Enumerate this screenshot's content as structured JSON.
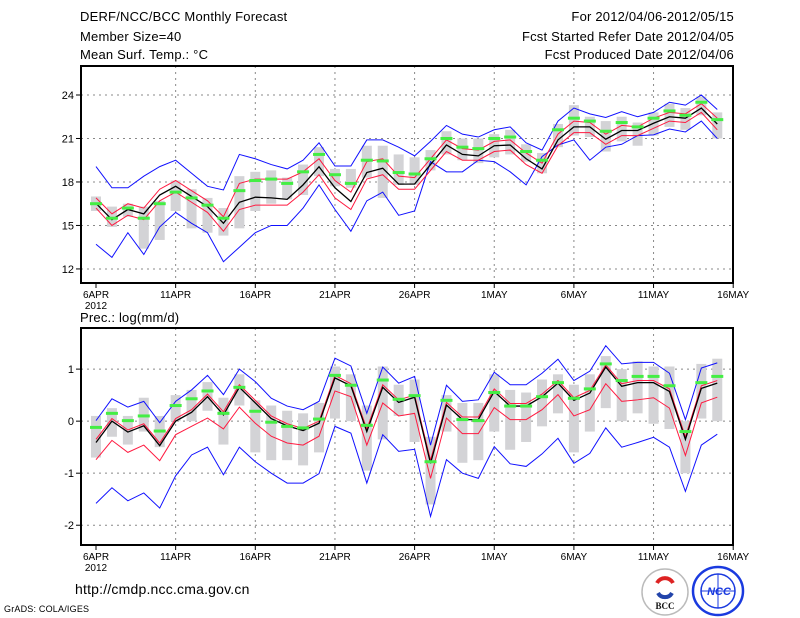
{
  "header": {
    "title": "DERF/NCC/BCC Monthly Forecast",
    "member_size": "Member Size=40",
    "variable": "Mean Surf. Temp.: °C",
    "period": "For 2012/04/06-2012/05/15",
    "start_date": "Fcst Started Refer Date 2012/04/05",
    "produced_date": "Fcst Produced Date 2012/04/06"
  },
  "footer": {
    "url": "http://cmdp.ncc.cma.gov.cn",
    "grads": "GrADS: COLA/IGES",
    "logo_bcc": "BCC",
    "logo_ncc": "NCC"
  },
  "colors": {
    "ensemble_mean": "#000000",
    "spread": "#ff1a40",
    "envelope": "#1010ff",
    "observed": "#44ee44",
    "members_bar": "#d3d3d6",
    "grid": "#888888"
  },
  "chart_data": [
    {
      "type": "line",
      "title": "Mean Surf. Temp.: °C",
      "xlabel": "",
      "ylabel": "",
      "x_tick_labels": [
        "6APR",
        "11APR",
        "16APR",
        "21APR",
        "26APR",
        "1MAY",
        "6MAY",
        "11MAY",
        "16MAY"
      ],
      "x_year_label": "2012",
      "y_ticks": [
        12,
        15,
        18,
        21,
        24
      ],
      "ylim": [
        11.03,
        26
      ],
      "grid": true,
      "start_day": "2012-04-06",
      "ndays": 40,
      "series": [
        {
          "name": "bar_low",
          "values": [
            16.0,
            14.9,
            15.6,
            13.4,
            14.0,
            16.0,
            14.8,
            14.5,
            14.3,
            14.8,
            16.0,
            16.5,
            16.8,
            17.1,
            18.4,
            17.7,
            17.6,
            18.3,
            16.9,
            17.8,
            17.8,
            18.8,
            19.9,
            19.5,
            19.3,
            19.7,
            19.9,
            19.4,
            18.6,
            20.4,
            21.2,
            21.1,
            20.1,
            20.8,
            20.5,
            21.2,
            21.8,
            21.6,
            22.6,
            21.0
          ]
        },
        {
          "name": "bar_high",
          "values": [
            17.0,
            16.3,
            16.5,
            16.3,
            16.7,
            18.1,
            17.5,
            16.9,
            16.2,
            18.4,
            18.7,
            18.8,
            18.3,
            19.2,
            20.4,
            18.9,
            18.9,
            20.5,
            20.5,
            19.9,
            19.7,
            20.2,
            21.5,
            21.0,
            21.0,
            21.3,
            21.6,
            20.6,
            20.0,
            22.0,
            23.3,
            22.5,
            22.2,
            22.5,
            22.1,
            22.8,
            23.4,
            23.1,
            23.9,
            22.8
          ]
        },
        {
          "name": "max",
          "values": [
            19.06,
            17.6,
            17.6,
            18.4,
            19.06,
            19.5,
            18.6,
            17.7,
            17.45,
            19.9,
            19.6,
            19.2,
            18.9,
            19.5,
            20.7,
            19.1,
            19.1,
            20.9,
            20.9,
            20.4,
            19.8,
            20.8,
            21.9,
            21.3,
            21.1,
            21.6,
            21.8,
            20.7,
            20.2,
            22.2,
            23.1,
            22.7,
            22.45,
            22.85,
            22.5,
            22.8,
            23.5,
            23.3,
            24.0,
            23.0
          ]
        },
        {
          "name": "min",
          "values": [
            13.7,
            12.8,
            14.5,
            13.0,
            14.9,
            15.9,
            15.15,
            14.5,
            12.5,
            13.5,
            14.5,
            15.0,
            15.0,
            16.2,
            17.8,
            16.1,
            14.6,
            16.7,
            17.3,
            15.7,
            16.0,
            19.4,
            18.7,
            18.7,
            19.5,
            19.4,
            18.7,
            17.8,
            19.75,
            20.55,
            20.9,
            19.5,
            20.4,
            20.6,
            21.2,
            21.25,
            21.65,
            21.45,
            22.2,
            21.0
          ]
        },
        {
          "name": "upper",
          "values": [
            16.9,
            15.8,
            16.5,
            16.2,
            17.5,
            18.1,
            17.4,
            16.7,
            15.6,
            17.9,
            18.2,
            18.2,
            18.2,
            18.7,
            19.6,
            18.1,
            17.3,
            19.4,
            19.6,
            18.4,
            18.3,
            19.6,
            20.9,
            20.3,
            20.2,
            20.8,
            20.9,
            20.0,
            19.3,
            21.3,
            22.2,
            22.1,
            21.3,
            21.9,
            21.8,
            22.4,
            22.8,
            22.7,
            23.4,
            22.4
          ]
        },
        {
          "name": "mean",
          "values": [
            16.53,
            15.4,
            16.1,
            15.8,
            17.1,
            17.7,
            17.0,
            16.3,
            15.15,
            16.6,
            16.95,
            16.9,
            16.8,
            17.8,
            19.05,
            17.6,
            16.65,
            18.65,
            18.95,
            17.85,
            17.86,
            19.2,
            20.55,
            19.9,
            19.8,
            20.5,
            20.55,
            19.6,
            18.9,
            20.9,
            21.8,
            21.8,
            20.95,
            21.55,
            21.55,
            22.05,
            22.5,
            22.4,
            23.1,
            22.0
          ]
        },
        {
          "name": "lower",
          "values": [
            16.2,
            15.0,
            15.7,
            15.4,
            16.7,
            17.3,
            16.6,
            15.9,
            14.6,
            16.1,
            16.4,
            16.4,
            16.4,
            17.3,
            18.5,
            16.9,
            16.1,
            18.2,
            18.5,
            17.5,
            17.5,
            18.8,
            20.1,
            19.5,
            19.5,
            20.1,
            20.2,
            19.2,
            18.6,
            20.5,
            21.4,
            21.4,
            20.6,
            21.2,
            21.2,
            21.7,
            22.2,
            22.1,
            22.8,
            21.6
          ]
        },
        {
          "name": "observed",
          "values": [
            16.5,
            15.5,
            16.2,
            15.5,
            16.5,
            17.3,
            16.9,
            16.4,
            15.5,
            17.4,
            18.1,
            18.2,
            17.9,
            18.7,
            19.9,
            18.5,
            17.9,
            19.5,
            19.45,
            18.65,
            18.55,
            19.6,
            21.0,
            20.4,
            20.3,
            21.0,
            21.1,
            20.1,
            19.5,
            21.6,
            22.4,
            22.2,
            21.5,
            22.1,
            21.8,
            22.4,
            22.9,
            22.6,
            23.5,
            22.3
          ]
        }
      ]
    },
    {
      "type": "line",
      "title": "Prec.: log(mm/d)",
      "xlabel": "",
      "ylabel": "",
      "x_tick_labels": [
        "6APR",
        "11APR",
        "16APR",
        "21APR",
        "26APR",
        "1MAY",
        "6MAY",
        "11MAY",
        "16MAY"
      ],
      "x_year_label": "2012",
      "y_ticks": [
        -2,
        -1,
        0,
        1
      ],
      "ylim": [
        -2.38,
        1.79
      ],
      "grid": true,
      "start_day": "2012-04-06",
      "ndays": 40,
      "series": [
        {
          "name": "bar_low",
          "values": [
            -0.7,
            -0.3,
            -0.45,
            -0.2,
            -0.5,
            0.0,
            0.0,
            0.2,
            -0.45,
            0.3,
            -0.6,
            -0.75,
            -0.75,
            -0.85,
            -0.6,
            0.05,
            0.0,
            -0.95,
            -0.35,
            0.1,
            -0.4,
            -1.6,
            -0.2,
            -0.8,
            -0.75,
            -0.2,
            -0.55,
            -0.4,
            -0.1,
            0.15,
            -0.6,
            -0.2,
            0.25,
            0.0,
            0.15,
            -0.05,
            -0.15,
            -1.0,
            0.05,
            0.0
          ]
        },
        {
          "name": "bar_high",
          "values": [
            0.1,
            0.25,
            0.1,
            0.45,
            0.1,
            0.5,
            0.6,
            0.75,
            0.45,
            0.9,
            0.4,
            0.3,
            0.2,
            0.15,
            0.35,
            1.05,
            0.9,
            0.3,
            1.05,
            0.7,
            0.8,
            -0.3,
            0.5,
            0.35,
            0.35,
            0.9,
            0.6,
            0.55,
            0.8,
            0.9,
            0.7,
            0.9,
            1.25,
            1.0,
            1.15,
            1.05,
            1.05,
            0.0,
            1.1,
            1.2
          ]
        },
        {
          "name": "max",
          "values": [
            0.01,
            0.43,
            0.27,
            0.38,
            -0.03,
            0.38,
            0.6,
            0.88,
            0.51,
            1.0,
            0.76,
            0.44,
            0.29,
            0.22,
            0.38,
            1.21,
            1.06,
            0.15,
            1.04,
            0.73,
            0.86,
            -0.46,
            0.69,
            0.38,
            0.41,
            0.94,
            0.7,
            0.7,
            0.92,
            1.19,
            0.78,
            0.96,
            1.45,
            1.1,
            1.13,
            1.13,
            0.92,
            0.03,
            1.02,
            1.12
          ]
        },
        {
          "name": "min",
          "values": [
            -1.58,
            -1.28,
            -1.53,
            -1.38,
            -1.67,
            -1.05,
            -0.65,
            -0.5,
            -1.03,
            -0.5,
            -0.78,
            -1.0,
            -1.19,
            -1.19,
            -1.01,
            -0.1,
            -0.23,
            -1.19,
            -0.26,
            -0.58,
            -0.54,
            -1.83,
            -0.74,
            -1.0,
            -1.1,
            -0.49,
            -0.82,
            -0.87,
            -0.63,
            -0.33,
            -0.81,
            -0.62,
            -0.13,
            -0.5,
            -0.41,
            -0.31,
            -0.5,
            -1.35,
            -0.46,
            -0.25
          ]
        },
        {
          "name": "upper",
          "values": [
            -0.35,
            0.05,
            -0.17,
            -0.05,
            -0.42,
            0.05,
            0.22,
            0.52,
            0.18,
            0.7,
            0.4,
            0.1,
            -0.05,
            -0.14,
            0.0,
            0.88,
            0.72,
            -0.15,
            0.7,
            0.41,
            0.5,
            -0.75,
            0.36,
            0.08,
            0.08,
            0.62,
            0.34,
            0.34,
            0.52,
            0.78,
            0.45,
            0.59,
            1.08,
            0.72,
            0.78,
            0.78,
            0.62,
            -0.3,
            0.68,
            0.78
          ]
        },
        {
          "name": "mean",
          "values": [
            -0.41,
            0.0,
            -0.21,
            -0.09,
            -0.47,
            0.0,
            0.17,
            0.47,
            0.12,
            0.65,
            0.35,
            0.05,
            -0.09,
            -0.18,
            -0.04,
            0.83,
            0.68,
            -0.2,
            0.65,
            0.36,
            0.46,
            -0.81,
            0.31,
            0.03,
            0.03,
            0.57,
            0.29,
            0.29,
            0.47,
            0.73,
            0.4,
            0.54,
            1.04,
            0.67,
            0.74,
            0.74,
            0.57,
            -0.35,
            0.63,
            0.73
          ]
        },
        {
          "name": "lower",
          "values": [
            -0.74,
            -0.37,
            -0.6,
            -0.46,
            -0.76,
            -0.26,
            -0.1,
            0.06,
            -0.15,
            0.27,
            -0.04,
            -0.29,
            -0.42,
            -0.46,
            -0.29,
            0.58,
            0.47,
            -0.46,
            0.35,
            0.1,
            0.15,
            -1.1,
            0.06,
            -0.24,
            -0.24,
            0.26,
            0.03,
            0.03,
            0.22,
            0.51,
            0.1,
            0.22,
            0.72,
            0.38,
            0.41,
            0.45,
            0.25,
            -0.66,
            0.35,
            0.46
          ]
        },
        {
          "name": "observed",
          "values": [
            -0.12,
            0.15,
            0.01,
            0.1,
            -0.19,
            0.3,
            0.43,
            0.58,
            0.15,
            0.65,
            0.19,
            -0.02,
            -0.1,
            -0.13,
            0.04,
            0.88,
            0.69,
            -0.08,
            0.79,
            0.42,
            0.49,
            -0.78,
            0.4,
            0.03,
            0.01,
            0.55,
            0.29,
            0.29,
            0.47,
            0.74,
            0.44,
            0.62,
            1.1,
            0.78,
            0.86,
            0.86,
            0.68,
            -0.2,
            0.74,
            0.86
          ]
        }
      ]
    }
  ]
}
